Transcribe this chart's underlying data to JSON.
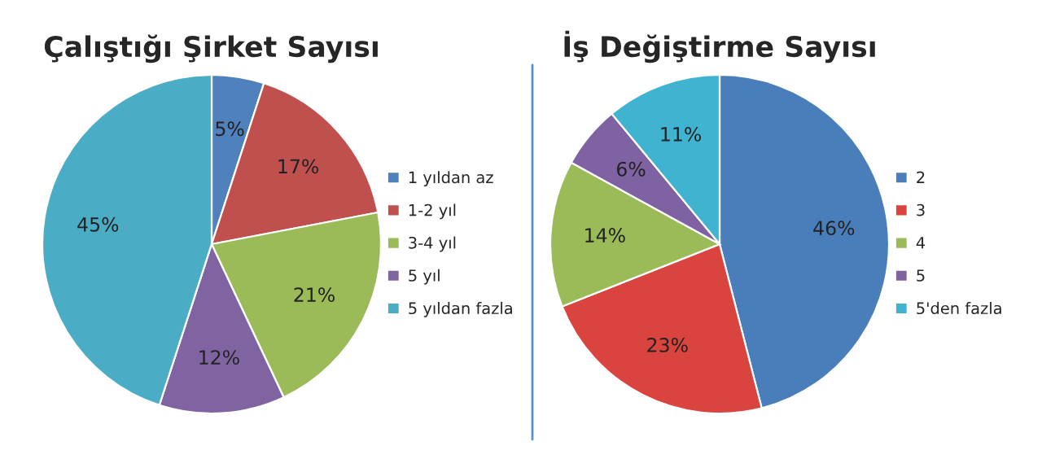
{
  "chart_data": [
    {
      "type": "pie",
      "title": "Çalıştığı Şirket Sayısı",
      "categories": [
        "1 yıldan az",
        "1-2 yıl",
        "3-4 yıl",
        "5 yıl",
        "5 yıldan fazla"
      ],
      "values": [
        5,
        17,
        21,
        12,
        45
      ],
      "value_labels": [
        "5%",
        "17%",
        "21%",
        "12%",
        "45%"
      ],
      "colors": [
        "#4f81bd",
        "#c0504d",
        "#9bbb59",
        "#8064a2",
        "#4bacc6"
      ],
      "legend": "right"
    },
    {
      "type": "pie",
      "title": "İş Değiştirme Sayısı",
      "categories": [
        "2",
        "3",
        "4",
        "5",
        "5'den fazla"
      ],
      "values": [
        46,
        23,
        14,
        6,
        11
      ],
      "value_labels": [
        "46%",
        "23%",
        "14%",
        "6%",
        "11%"
      ],
      "colors": [
        "#4a7ebb",
        "#d9443f",
        "#9bbb59",
        "#7f62a1",
        "#3fb3cf"
      ],
      "legend": "right"
    }
  ]
}
